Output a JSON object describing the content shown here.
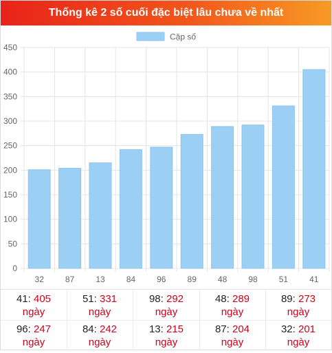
{
  "header": {
    "title": "Thống kê 2 số cuối đặc biệt lâu chưa về nhất"
  },
  "chart_data": {
    "type": "bar",
    "legend": {
      "label": "Cặp số",
      "position": "top"
    },
    "categories": [
      "32",
      "87",
      "13",
      "84",
      "96",
      "89",
      "48",
      "98",
      "51",
      "41"
    ],
    "series": [
      {
        "name": "Cặp số",
        "values": [
          201,
          204,
          215,
          242,
          247,
          273,
          289,
          292,
          331,
          405
        ]
      }
    ],
    "ylim": [
      0,
      450
    ],
    "yticks": [
      0,
      50,
      100,
      150,
      200,
      250,
      300,
      350,
      400,
      450
    ],
    "grid": true,
    "colors": {
      "bar": "#9bcff3",
      "bar_edge": "#8fc6ef",
      "grid": "#e5e5e5",
      "tick_text": "#666666"
    }
  },
  "stats": {
    "unit": "ngày",
    "rows": [
      [
        {
          "num": "41",
          "days": "405"
        },
        {
          "num": "51",
          "days": "331"
        },
        {
          "num": "98",
          "days": "292"
        },
        {
          "num": "48",
          "days": "289"
        },
        {
          "num": "89",
          "days": "273"
        }
      ],
      [
        {
          "num": "96",
          "days": "247"
        },
        {
          "num": "84",
          "days": "242"
        },
        {
          "num": "13",
          "days": "215"
        },
        {
          "num": "87",
          "days": "204"
        },
        {
          "num": "32",
          "days": "201"
        }
      ]
    ]
  }
}
